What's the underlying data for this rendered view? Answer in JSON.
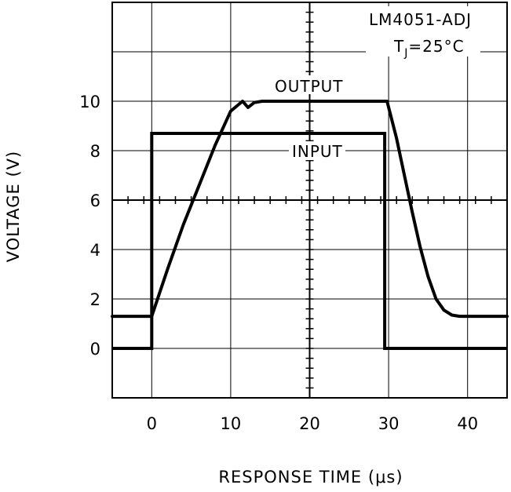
{
  "chart_data": {
    "type": "line",
    "title": "LM4051-ADJ",
    "condition": "TJ=25°C",
    "condition_main": "T",
    "condition_sub": "J",
    "condition_rest": "=25°C",
    "xlabel": "RESPONSE TIME (μs)",
    "ylabel": "VOLTAGE (V)",
    "xlim": [
      -5,
      45
    ],
    "ylim": [
      -2,
      14
    ],
    "x_ticks": [
      0,
      10,
      20,
      30,
      40
    ],
    "x_tick_labels": [
      "0",
      "10",
      "20",
      "30",
      "40"
    ],
    "y_ticks": [
      0,
      2,
      4,
      6,
      8,
      10
    ],
    "y_tick_labels": [
      "0",
      "2",
      "4",
      "6",
      "8",
      "10"
    ],
    "grid": true,
    "series": [
      {
        "name": "OUTPUT",
        "x": [
          -5,
          0,
          2,
          4,
          6,
          8,
          10,
          11.5,
          12.2,
          13,
          14,
          20,
          29.8,
          31,
          32,
          33,
          34,
          35,
          36,
          37,
          38,
          39,
          40,
          45
        ],
        "y": [
          1.3,
          1.3,
          3.2,
          5.0,
          6.6,
          8.2,
          9.6,
          10.0,
          9.75,
          9.95,
          10.0,
          10.0,
          10.0,
          8.5,
          7.0,
          5.5,
          4.1,
          2.9,
          2.0,
          1.55,
          1.35,
          1.3,
          1.3,
          1.3
        ]
      },
      {
        "name": "INPUT",
        "x": [
          -5,
          0,
          0,
          29.5,
          29.5,
          45
        ],
        "y": [
          0,
          0,
          8.7,
          8.7,
          0,
          0
        ]
      }
    ],
    "annotations": [
      "OUTPUT",
      "INPUT"
    ]
  }
}
